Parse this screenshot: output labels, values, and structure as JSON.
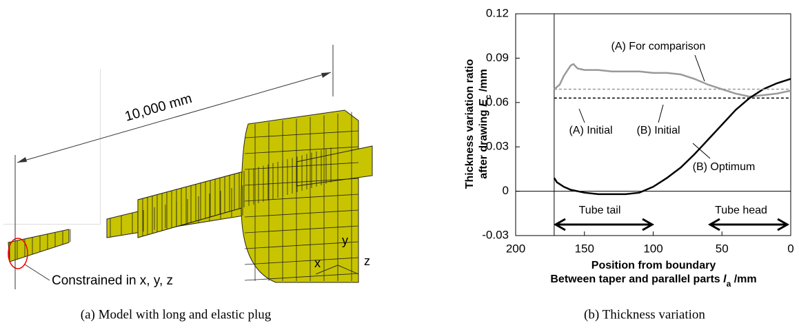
{
  "panel_a": {
    "dimension": "10,000 mm",
    "constraint": "Constrained in x, y, z",
    "axes": [
      "x",
      "y",
      "z"
    ],
    "caption": "(a) Model with long and elastic plug"
  },
  "chart_data": {
    "type": "line",
    "ylabel": {
      "line1": "Thickness variation ratio",
      "line2": "after drawing ",
      "symbol": "E",
      "subscript": "c",
      "unit": " /mm"
    },
    "xlabel": {
      "line1": "Position from boundary",
      "line2": "Between taper and parallel parts ",
      "symbol": "l",
      "subscript": "a",
      "unit": " /mm"
    },
    "xlim": [
      200,
      0
    ],
    "xticks": [
      200,
      150,
      100,
      50,
      0
    ],
    "ylim": [
      -0.03,
      0.12
    ],
    "yticks": [
      0.12,
      0.09,
      0.06,
      0.03,
      0,
      -0.03
    ],
    "boundary_x": 172,
    "series": [
      {
        "name": "(A) For comparison",
        "color": "#999999",
        "dashed": false,
        "x": [
          172,
          168,
          165,
          160,
          158,
          155,
          150,
          140,
          130,
          120,
          110,
          100,
          90,
          80,
          70,
          60,
          50,
          40,
          30,
          20,
          10,
          0
        ],
        "values": [
          0.069,
          0.072,
          0.078,
          0.085,
          0.086,
          0.083,
          0.082,
          0.082,
          0.081,
          0.081,
          0.081,
          0.08,
          0.08,
          0.079,
          0.076,
          0.072,
          0.069,
          0.066,
          0.064,
          0.065,
          0.066,
          0.068
        ]
      },
      {
        "name": "(B) Optimum",
        "color": "#000000",
        "dashed": false,
        "x": [
          172,
          170,
          165,
          160,
          150,
          140,
          130,
          120,
          110,
          100,
          90,
          80,
          70,
          60,
          50,
          40,
          30,
          20,
          10,
          0
        ],
        "values": [
          0.009,
          0.006,
          0.003,
          0.001,
          -0.001,
          -0.002,
          -0.002,
          -0.002,
          -0.001,
          0.003,
          0.009,
          0.016,
          0.025,
          0.035,
          0.045,
          0.055,
          0.063,
          0.069,
          0.073,
          0.076
        ]
      },
      {
        "name": "(A) Initial",
        "color": "#999999",
        "dashed": true,
        "x": [
          172,
          0
        ],
        "values": [
          0.069,
          0.069
        ]
      },
      {
        "name": "(B) Initial",
        "color": "#000000",
        "dashed": true,
        "x": [
          172,
          0
        ],
        "values": [
          0.063,
          0.063
        ]
      }
    ],
    "annotations": [
      "Tube tail",
      "Tube head"
    ],
    "caption": "(b) Thickness variation"
  }
}
